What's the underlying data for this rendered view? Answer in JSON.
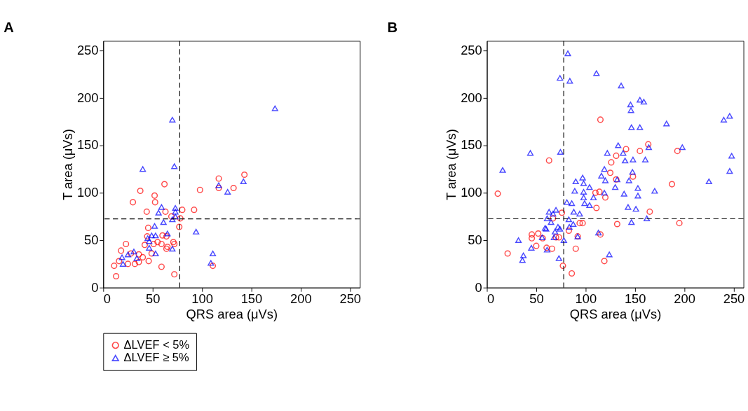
{
  "chart_data": [
    {
      "type": "scatter",
      "title": "A",
      "xlabel": "QRS area (μVs)",
      "ylabel": "T area (μVs)",
      "xlim": [
        0,
        260
      ],
      "ylim": [
        0,
        260
      ],
      "xticks": [
        0,
        50,
        100,
        150,
        200,
        250
      ],
      "yticks": [
        0,
        50,
        100,
        150,
        200,
        250
      ],
      "grid": false,
      "legend": "bottom",
      "ref_lines": [
        {
          "axis": "x",
          "value": 77.5,
          "color": "#000000",
          "line_style": "dashed"
        },
        {
          "axis": "y",
          "value": 72.4,
          "color": "#000000",
          "line_style": "dashed"
        }
      ],
      "series": [
        {
          "name": "ΔLVEF < 5%",
          "color": "#ff0000",
          "marker": "circle",
          "x": [
            11,
            13,
            18,
            23,
            16,
            25,
            32,
            36,
            40,
            30,
            37.5,
            44,
            45.5,
            44.5,
            42,
            46,
            52,
            52.5,
            62,
            63,
            59,
            72,
            77,
            78,
            80,
            92,
            98,
            117,
            117,
            132,
            143,
            111,
            55,
            59,
            64,
            65,
            71,
            72,
            69,
            51,
            49,
            36,
            28,
            60,
            64
          ],
          "values": [
            23,
            12,
            39,
            46,
            28,
            25,
            25,
            27,
            32,
            90,
            102,
            80,
            63,
            54,
            45,
            28,
            97,
            90,
            109,
            80,
            22,
            14,
            64,
            73,
            82,
            82,
            103,
            115,
            105,
            105,
            119,
            23,
            48,
            46,
            41,
            43,
            48,
            46,
            75,
            46,
            36,
            35,
            36,
            55,
            54
          ]
        },
        {
          "name": "ΔLVEF ≥ 5%",
          "color": "#0000ff",
          "marker": "triangle",
          "x": [
            19,
            20,
            25,
            31,
            34,
            40,
            45,
            46.5,
            46.5,
            49,
            53,
            52,
            53,
            59,
            56,
            61,
            65,
            70,
            70,
            70,
            72,
            73,
            73,
            73,
            94,
            109,
            111,
            117,
            126,
            142,
            174
          ],
          "values": [
            32,
            25,
            35,
            38,
            31,
            125,
            52,
            49,
            42,
            55,
            36,
            65,
            55,
            85,
            79,
            69,
            57,
            41,
            72,
            177,
            128,
            84,
            80,
            75,
            59,
            26,
            36,
            108,
            101,
            112,
            189
          ]
        }
      ]
    },
    {
      "type": "scatter",
      "title": "B",
      "xlabel": "QRS area (μVs)",
      "ylabel": "T area (μVs)",
      "xlim": [
        0,
        260
      ],
      "ylim": [
        0,
        260
      ],
      "xticks": [
        0,
        50,
        100,
        150,
        200,
        250
      ],
      "yticks": [
        0,
        50,
        100,
        150,
        200,
        250
      ],
      "grid": false,
      "legend": "bottom",
      "ref_lines": [
        {
          "axis": "x",
          "value": 77.8,
          "color": "#000000",
          "line_style": "dashed"
        },
        {
          "axis": "y",
          "value": 72.5,
          "color": "#000000",
          "line_style": "dashed"
        }
      ],
      "series": [
        {
          "name": "ΔLVEF < 5%",
          "color": "#ff0000",
          "marker": "circle",
          "x": [
            11,
            21,
            45.5,
            45.5,
            50,
            52,
            56.5,
            60.5,
            66,
            63,
            67,
            70,
            73,
            76,
            77,
            86,
            83,
            90,
            92,
            94,
            97,
            111,
            115,
            115,
            119,
            120,
            125,
            126,
            131,
            131,
            132,
            141,
            148,
            155,
            163.5,
            165,
            187.5,
            193,
            195,
            110,
            114
          ],
          "values": [
            99,
            36,
            56,
            52,
            44,
            57,
            52,
            42,
            41,
            134,
            73,
            53,
            53,
            79,
            23,
            15,
            60,
            41,
            54,
            68,
            68,
            84,
            177,
            56,
            28,
            95,
            121,
            132,
            139,
            114,
            67,
            146,
            117,
            144,
            151,
            80,
            109,
            144,
            68,
            100,
            101
          ]
        },
        {
          "name": "ΔLVEF ≥ 5%",
          "color": "#0000ff",
          "marker": "triangle",
          "x": [
            16,
            32,
            37,
            36,
            45,
            44,
            56,
            59,
            61,
            63,
            61,
            65,
            68,
            70,
            72,
            74,
            73,
            78,
            74.5,
            74,
            82,
            84,
            81,
            83,
            83.5,
            87.5,
            86,
            90,
            89,
            88,
            94,
            92,
            97,
            98,
            98,
            98,
            99,
            104,
            104,
            108,
            111,
            113,
            119,
            116,
            120,
            122,
            119,
            130,
            132,
            133,
            138,
            139,
            136,
            140,
            143,
            144,
            146,
            145.5,
            146.5,
            146.5,
            148,
            147.5,
            151,
            153,
            153,
            155,
            155,
            159,
            160.5,
            164,
            162,
            170,
            182,
            198,
            225,
            240,
            246,
            246,
            248,
            124,
            60,
            69,
            67
          ],
          "values": [
            124,
            50,
            34,
            29,
            42,
            142,
            53,
            63,
            40,
            80,
            73,
            69,
            53,
            82,
            64,
            62,
            31,
            50,
            143,
            221,
            247,
            218,
            90,
            72,
            64,
            67,
            89,
            112,
            102,
            80,
            78,
            54,
            116,
            110,
            101,
            95,
            89,
            106,
            87,
            95,
            226,
            58,
            125,
            118,
            113,
            142,
            100,
            106,
            114,
            150,
            142,
            99,
            213,
            134,
            85,
            113,
            187,
            193,
            169,
            69,
            135,
            122,
            83,
            105,
            97,
            169,
            198,
            196,
            135,
            148,
            73,
            102,
            173,
            148,
            112,
            177,
            181,
            123,
            139,
            35,
            62,
            59,
            78
          ]
        }
      ]
    }
  ]
}
